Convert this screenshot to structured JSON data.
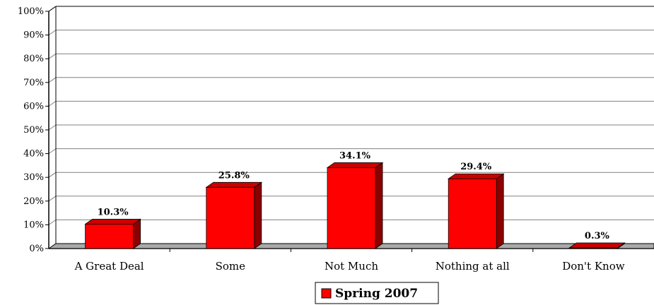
{
  "chart_data": {
    "type": "bar",
    "categories": [
      "A Great Deal",
      "Some",
      "Not Much",
      "Nothing at all",
      "Don't Know"
    ],
    "series": [
      {
        "name": "Spring 2007",
        "values": [
          10.3,
          25.8,
          34.1,
          29.4,
          0.3
        ],
        "data_labels": [
          "10.3%",
          "25.8%",
          "34.1%",
          "29.4%",
          "0.3%"
        ]
      }
    ],
    "y_ticks": [
      "0%",
      "10%",
      "20%",
      "30%",
      "40%",
      "50%",
      "60%",
      "70%",
      "80%",
      "90%",
      "100%"
    ],
    "ylim": [
      0,
      100
    ],
    "grid": true,
    "style": "3d",
    "legend": {
      "position": "bottom-center",
      "label": "Spring 2007"
    },
    "colors": {
      "bar_front": "#ff0000",
      "bar_top": "#cc0000",
      "bar_side": "#8b0000",
      "floor": "#a9a9a9",
      "gridline": "#808080"
    }
  }
}
